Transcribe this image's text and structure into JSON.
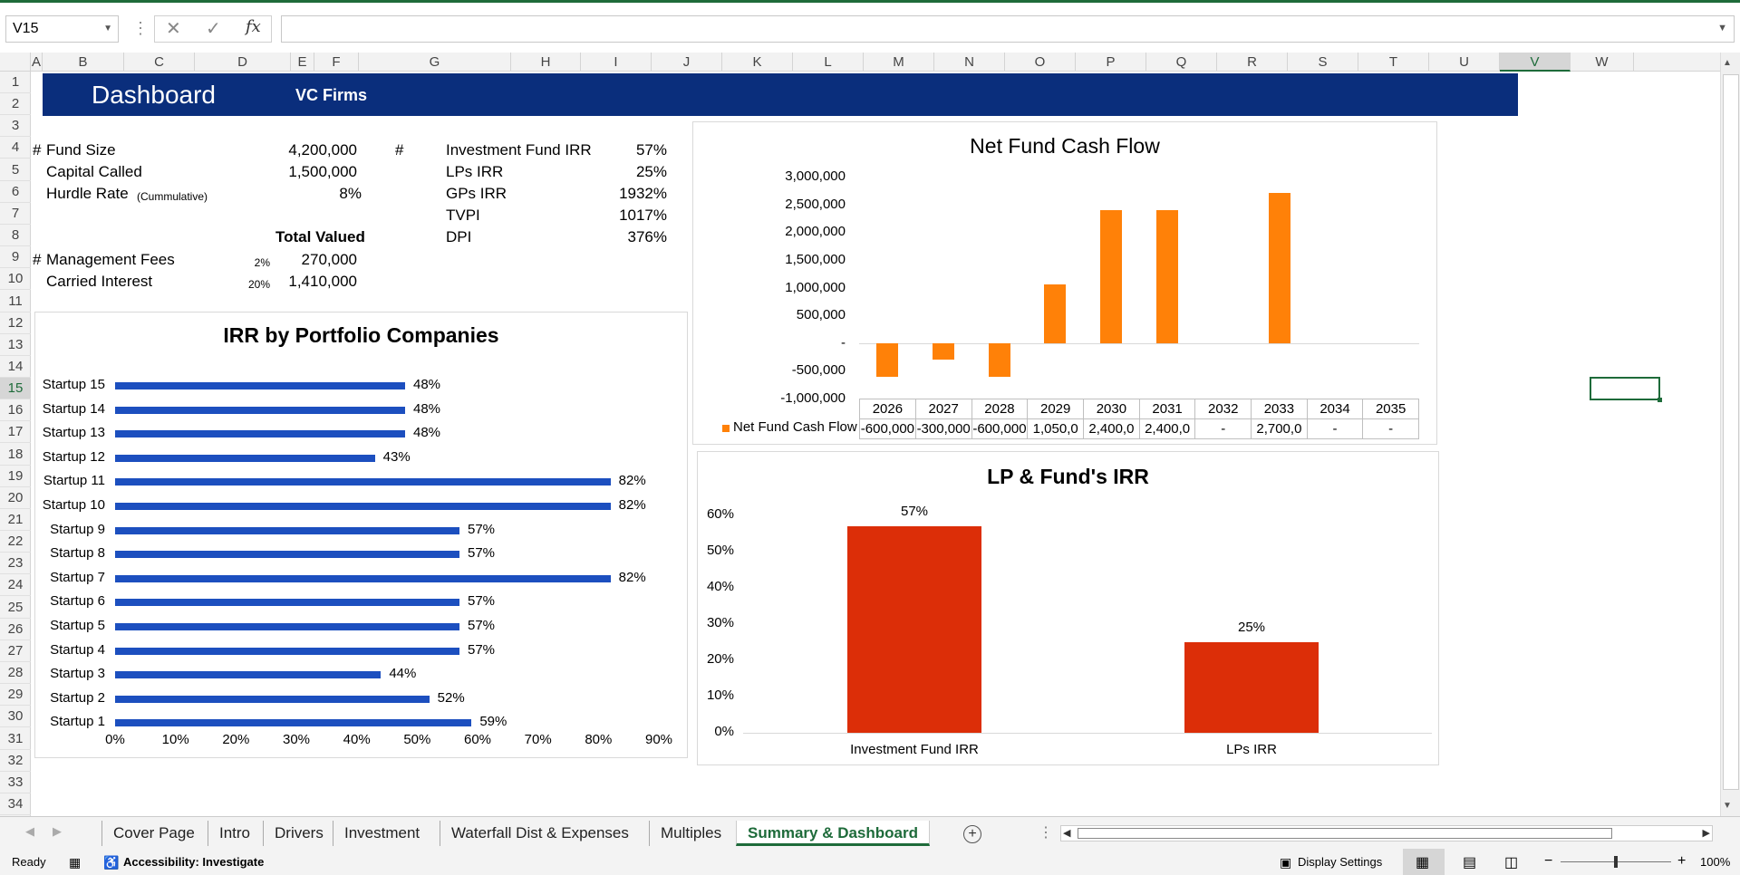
{
  "toolbar": {
    "name_box": "V15",
    "fx": "fx",
    "cancel": "✕",
    "enter": "✓"
  },
  "columns": [
    "A",
    "B",
    "C",
    "D",
    "E",
    "F",
    "G",
    "H",
    "I",
    "J",
    "K",
    "L",
    "M",
    "N",
    "O",
    "P",
    "Q",
    "R",
    "S",
    "T",
    "U",
    "V",
    "W"
  ],
  "rows": [
    "1",
    "2",
    "3",
    "4",
    "5",
    "6",
    "7",
    "8",
    "9",
    "10",
    "11",
    "12",
    "13",
    "14",
    "15",
    "16",
    "17",
    "18",
    "19",
    "20",
    "21",
    "22",
    "23",
    "24",
    "25",
    "26",
    "27",
    "28",
    "29",
    "30",
    "31",
    "32",
    "33",
    "34"
  ],
  "selected_cell": {
    "column": "V",
    "row": "15"
  },
  "banner": {
    "title": "Dashboard",
    "subtitle": "VC Firms"
  },
  "summary": {
    "fund_size_label": "Fund Size",
    "fund_size": "4,200,000",
    "capital_called_label": "Capital Called",
    "capital_called": "1,500,000",
    "hurdle_label": "Hurdle Rate",
    "hurdle_note": "(Cummulative)",
    "hurdle": "8%",
    "total_valued": "Total Valued",
    "mgmt_label": "Management Fees",
    "mgmt_pct": "2%",
    "mgmt_val": "270,000",
    "carry_label": "Carried Interest",
    "carry_pct": "20%",
    "carry_val": "1,410,000",
    "hash": "#"
  },
  "metrics": [
    {
      "label": "Investment Fund IRR",
      "value": "57%"
    },
    {
      "label": "LPs IRR",
      "value": "25%"
    },
    {
      "label": "GPs IRR",
      "value": "1932%"
    },
    {
      "label": "TVPI",
      "value": "1017%"
    },
    {
      "label": "DPI",
      "value": "376%"
    }
  ],
  "chart_data": [
    {
      "type": "bar",
      "orientation": "horizontal",
      "title": "IRR by Portfolio Companies",
      "categories": [
        "Startup 15",
        "Startup 14",
        "Startup 13",
        "Startup 12",
        "Startup 11",
        "Startup 10",
        "Startup 9",
        "Startup 8",
        "Startup 7",
        "Startup 6",
        "Startup 5",
        "Startup 4",
        "Startup 3",
        "Startup 2",
        "Startup 1"
      ],
      "values": [
        48,
        48,
        48,
        43,
        82,
        82,
        57,
        57,
        82,
        57,
        57,
        57,
        44,
        52,
        59
      ],
      "value_labels": [
        "48%",
        "48%",
        "48%",
        "43%",
        "82%",
        "82%",
        "57%",
        "57%",
        "82%",
        "57%",
        "57%",
        "57%",
        "44%",
        "52%",
        "59%"
      ],
      "xlim": [
        0,
        90
      ],
      "x_ticks": [
        "0%",
        "10%",
        "20%",
        "30%",
        "40%",
        "50%",
        "60%",
        "70%",
        "80%",
        "90%"
      ],
      "color": "#1c4fbf"
    },
    {
      "type": "bar",
      "title": "Net Fund Cash Flow",
      "categories": [
        "2026",
        "2027",
        "2028",
        "2029",
        "2030",
        "2031",
        "2032",
        "2033",
        "2034",
        "2035"
      ],
      "series": [
        {
          "name": "Net Fund Cash Flow",
          "values": [
            -600000,
            -300000,
            -600000,
            1050000,
            2400000,
            2400000,
            0,
            2700000,
            0,
            0
          ]
        }
      ],
      "table_values": [
        "-600,000",
        "-300,000",
        "-600,000",
        "1,050,0",
        "2,400,0",
        "2,400,0",
        "-",
        "2,700,0",
        "-",
        "-"
      ],
      "ylim": [
        -1000000,
        3000000
      ],
      "y_ticks": [
        "3,000,000",
        "2,500,000",
        "2,000,000",
        "1,500,000",
        "1,000,000",
        "500,000",
        "-",
        "-500,000",
        "-1,000,000"
      ],
      "color": "#ff8108"
    },
    {
      "type": "bar",
      "title": "LP & Fund's IRR",
      "categories": [
        "Investment Fund IRR",
        "LPs IRR"
      ],
      "values": [
        57,
        25
      ],
      "value_labels": [
        "57%",
        "25%"
      ],
      "ylim": [
        0,
        60
      ],
      "y_ticks": [
        "60%",
        "50%",
        "40%",
        "30%",
        "20%",
        "10%",
        "0%"
      ],
      "color": "#dc2e08"
    }
  ],
  "tabs": [
    "Cover Page",
    "Intro",
    "Drivers",
    "Investment",
    "Waterfall Dist & Expenses",
    "Multiples",
    "Summary & Dashboard"
  ],
  "active_tab": "Summary & Dashboard",
  "status": {
    "ready": "Ready",
    "accessibility": "Accessibility: Investigate",
    "display_settings": "Display Settings",
    "zoom": "100%",
    "minus": "−",
    "plus": "+"
  }
}
